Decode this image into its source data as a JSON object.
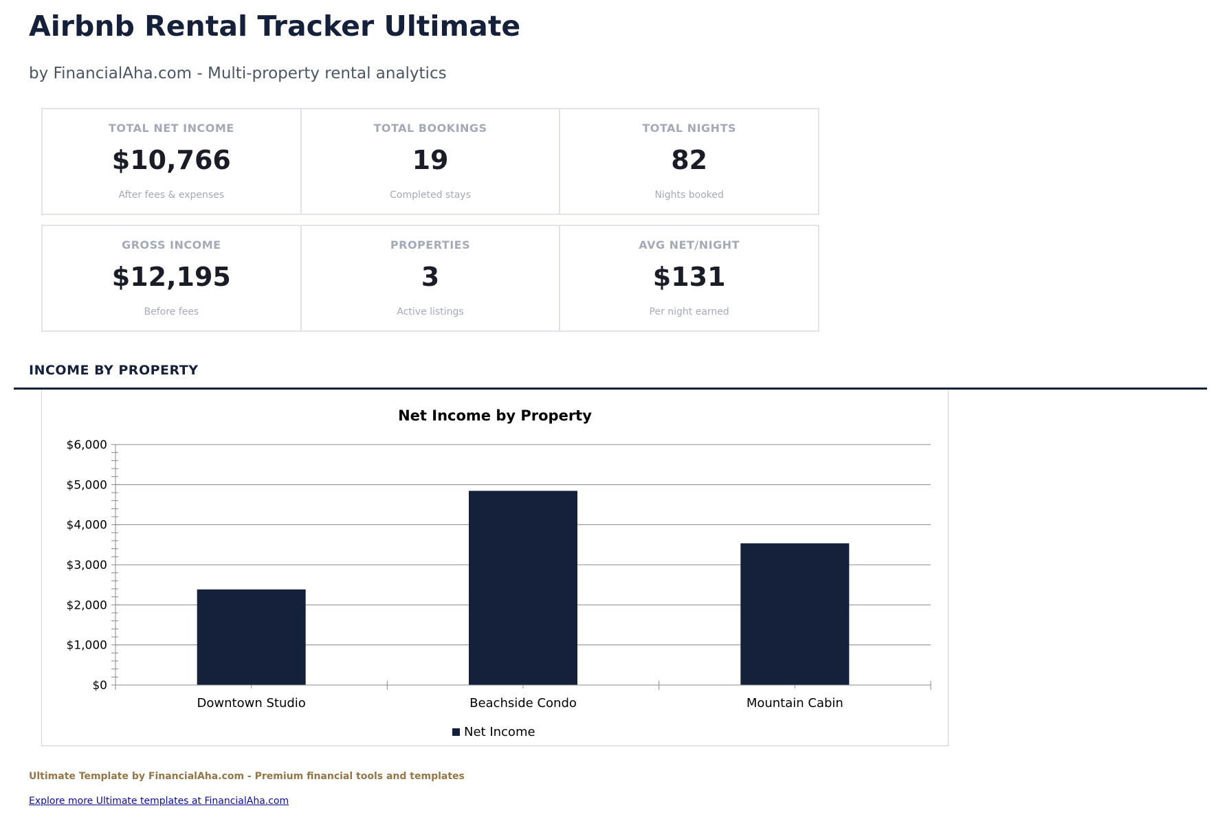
{
  "header": {
    "title": "Airbnb Rental Tracker Ultimate",
    "subtitle": "by FinancialAha.com - Multi-property rental analytics"
  },
  "kpis": [
    {
      "label": "TOTAL NET INCOME",
      "value": "$10,766",
      "sub": "After fees & expenses"
    },
    {
      "label": "TOTAL BOOKINGS",
      "value": "19",
      "sub": "Completed stays"
    },
    {
      "label": "TOTAL NIGHTS",
      "value": "82",
      "sub": "Nights booked"
    },
    {
      "label": "GROSS INCOME",
      "value": "$12,195",
      "sub": "Before fees"
    },
    {
      "label": "PROPERTIES",
      "value": "3",
      "sub": "Active listings"
    },
    {
      "label": "AVG NET/NIGHT",
      "value": "$131",
      "sub": "Per night earned"
    }
  ],
  "section_title": "INCOME BY PROPERTY",
  "chart_data": {
    "type": "bar",
    "title": "Net Income by Property",
    "categories": [
      "Downtown Studio",
      "Beachside Condo",
      "Mountain Cabin"
    ],
    "series": [
      {
        "name": "Net Income",
        "values": [
          2385,
          4845,
          3536
        ],
        "color": "#15213b"
      }
    ],
    "ylim": [
      0,
      6000
    ],
    "yticks": [
      "$0",
      "$1,000",
      "$2,000",
      "$3,000",
      "$4,000",
      "$5,000",
      "$6,000"
    ],
    "grid": true,
    "legend": "bottom"
  },
  "footer": {
    "text": "Ultimate Template by FinancialAha.com - Premium financial tools and templates",
    "link": "Explore more Ultimate templates at FinancialAha.com"
  }
}
